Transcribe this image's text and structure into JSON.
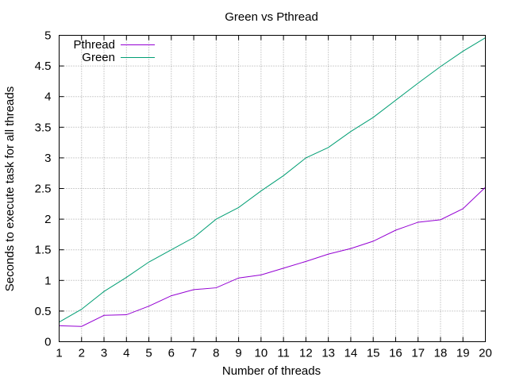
{
  "chart_data": {
    "type": "line",
    "title": "Green vs Pthread",
    "xlabel": "Number of threads",
    "ylabel": "Seconds to execute task for all threads",
    "xlim": [
      1,
      20
    ],
    "ylim": [
      0,
      5
    ],
    "x": [
      1,
      2,
      3,
      4,
      5,
      6,
      7,
      8,
      9,
      10,
      11,
      12,
      13,
      14,
      15,
      16,
      17,
      18,
      19,
      20
    ],
    "xticks": [
      "1",
      "2",
      "3",
      "4",
      "5",
      "6",
      "7",
      "8",
      "9",
      "10",
      "11",
      "12",
      "13",
      "14",
      "15",
      "16",
      "17",
      "18",
      "19",
      "20"
    ],
    "yticks": [
      "0",
      "0.5",
      "1",
      "1.5",
      "2",
      "2.5",
      "3",
      "3.5",
      "4",
      "4.5",
      "5"
    ],
    "yticks_values": [
      0,
      0.5,
      1,
      1.5,
      2,
      2.5,
      3,
      3.5,
      4,
      4.5,
      5
    ],
    "grid": true,
    "legend_position": "top-left",
    "series": [
      {
        "name": "Pthread",
        "color": "#9400d3",
        "values": [
          0.26,
          0.25,
          0.43,
          0.44,
          0.58,
          0.75,
          0.85,
          0.88,
          1.04,
          1.09,
          1.2,
          1.31,
          1.43,
          1.52,
          1.64,
          1.82,
          1.95,
          1.99,
          2.17,
          2.52
        ]
      },
      {
        "name": "Green",
        "color": "#009e73",
        "values": [
          0.32,
          0.53,
          0.82,
          1.05,
          1.3,
          1.5,
          1.7,
          2.0,
          2.19,
          2.46,
          2.71,
          3.0,
          3.17,
          3.43,
          3.66,
          3.94,
          4.22,
          4.49,
          4.74,
          4.96
        ]
      }
    ]
  }
}
